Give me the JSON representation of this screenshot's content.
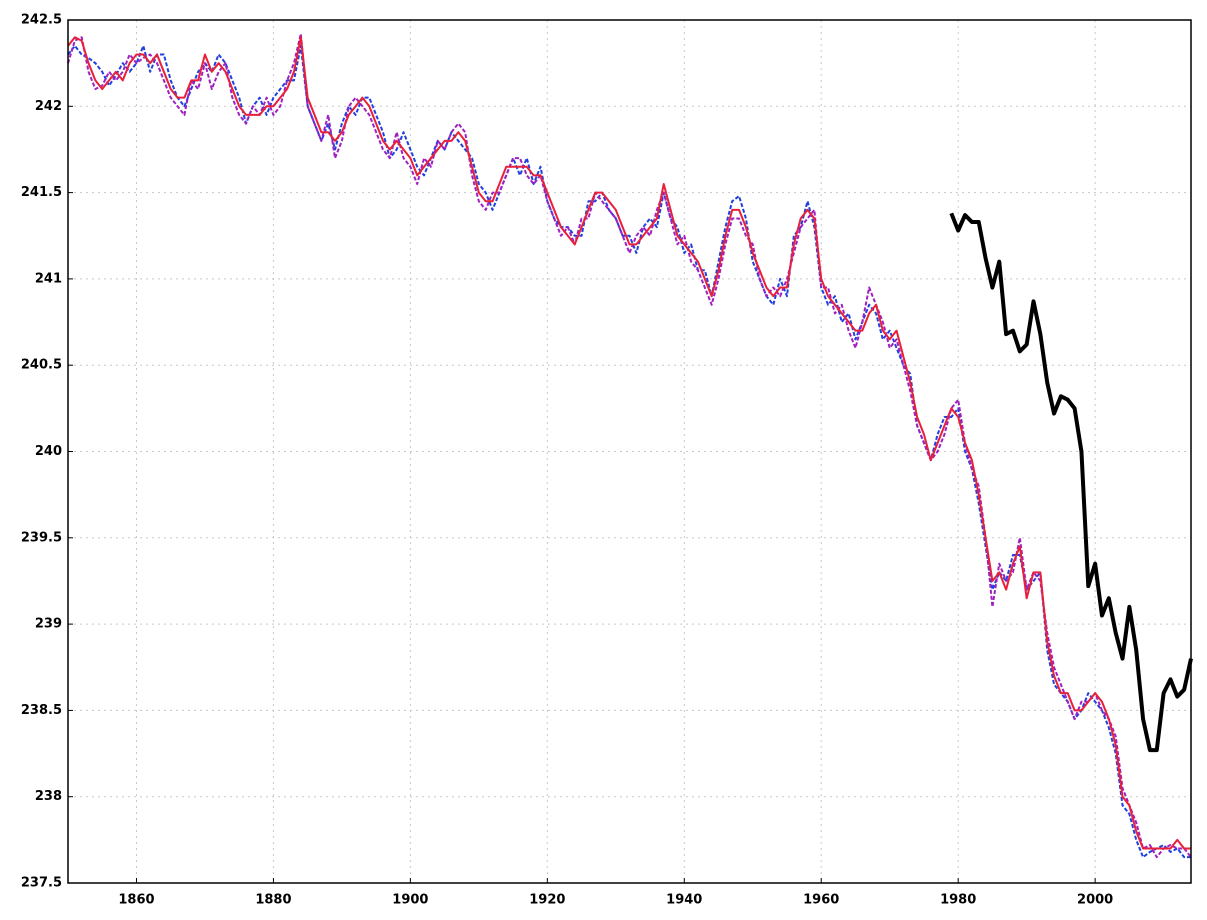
{
  "chart_data": {
    "type": "line",
    "xlim": [
      1850,
      2014
    ],
    "xticks": [
      1860,
      1880,
      1900,
      1920,
      1940,
      1960,
      1980,
      2000
    ],
    "ylim": [
      237.5,
      242.5
    ],
    "yticks": [
      237.5,
      238,
      238.5,
      239,
      239.5,
      240,
      240.5,
      241,
      241.5,
      242,
      242.5
    ],
    "grid": true,
    "x": [
      1850,
      1851,
      1852,
      1853,
      1854,
      1855,
      1856,
      1857,
      1858,
      1859,
      1860,
      1861,
      1862,
      1863,
      1864,
      1865,
      1866,
      1867,
      1868,
      1869,
      1870,
      1871,
      1872,
      1873,
      1874,
      1875,
      1876,
      1877,
      1878,
      1879,
      1880,
      1881,
      1882,
      1883,
      1884,
      1885,
      1886,
      1887,
      1888,
      1889,
      1890,
      1891,
      1892,
      1893,
      1894,
      1895,
      1896,
      1897,
      1898,
      1899,
      1900,
      1901,
      1902,
      1903,
      1904,
      1905,
      1906,
      1907,
      1908,
      1909,
      1910,
      1911,
      1912,
      1913,
      1914,
      1915,
      1916,
      1917,
      1918,
      1919,
      1920,
      1921,
      1922,
      1923,
      1924,
      1925,
      1926,
      1927,
      1928,
      1929,
      1930,
      1931,
      1932,
      1933,
      1934,
      1935,
      1936,
      1937,
      1938,
      1939,
      1940,
      1941,
      1942,
      1943,
      1944,
      1945,
      1946,
      1947,
      1948,
      1949,
      1950,
      1951,
      1952,
      1953,
      1954,
      1955,
      1956,
      1957,
      1958,
      1959,
      1960,
      1961,
      1962,
      1963,
      1964,
      1965,
      1966,
      1967,
      1968,
      1969,
      1970,
      1971,
      1972,
      1973,
      1974,
      1975,
      1976,
      1977,
      1978,
      1979,
      1980,
      1981,
      1982,
      1983,
      1984,
      1985,
      1986,
      1987,
      1988,
      1989,
      1990,
      1991,
      1992,
      1993,
      1994,
      1995,
      1996,
      1997,
      1998,
      1999,
      2000,
      2001,
      2002,
      2003,
      2004,
      2005,
      2006,
      2007,
      2008,
      2009,
      2010,
      2011,
      2012,
      2013,
      2014
    ],
    "series": [
      {
        "color": "#2040e0",
        "dash": true,
        "values": [
          242.3,
          242.35,
          242.3,
          242.28,
          242.25,
          242.2,
          242.12,
          242.18,
          242.25,
          242.2,
          242.25,
          242.35,
          242.2,
          242.3,
          242.3,
          242.15,
          242.05,
          242.0,
          242.1,
          242.2,
          242.25,
          242.2,
          242.3,
          242.25,
          242.15,
          242.05,
          241.9,
          242.0,
          242.05,
          241.95,
          242.05,
          242.1,
          242.15,
          242.15,
          242.35,
          242.0,
          241.9,
          241.8,
          241.9,
          241.75,
          241.9,
          242.0,
          241.95,
          242.05,
          242.05,
          241.95,
          241.85,
          241.7,
          241.75,
          241.85,
          241.75,
          241.65,
          241.6,
          241.7,
          241.8,
          241.75,
          241.85,
          241.8,
          241.75,
          241.7,
          241.55,
          241.5,
          241.4,
          241.5,
          241.6,
          241.7,
          241.6,
          241.7,
          241.55,
          241.65,
          241.45,
          241.35,
          241.3,
          241.3,
          241.25,
          241.25,
          241.45,
          241.45,
          241.5,
          241.4,
          241.35,
          241.25,
          241.25,
          241.15,
          241.3,
          241.35,
          241.3,
          241.5,
          241.35,
          241.3,
          241.15,
          241.2,
          241.05,
          241.05,
          240.9,
          241.1,
          241.3,
          241.45,
          241.48,
          241.35,
          241.1,
          241.0,
          240.9,
          240.85,
          241.0,
          240.9,
          241.25,
          241.3,
          241.45,
          241.3,
          240.95,
          240.85,
          240.9,
          240.75,
          240.8,
          240.65,
          240.75,
          240.85,
          240.8,
          240.65,
          240.7,
          240.6,
          240.5,
          240.45,
          240.15,
          240.05,
          239.95,
          240.1,
          240.2,
          240.2,
          240.25,
          240.0,
          239.9,
          239.7,
          239.45,
          239.2,
          239.3,
          239.25,
          239.4,
          239.4,
          239.2,
          239.25,
          239.3,
          238.85,
          238.65,
          238.6,
          238.55,
          238.45,
          238.5,
          238.6,
          238.55,
          238.5,
          238.4,
          238.25,
          237.95,
          237.9,
          237.75,
          237.65,
          237.68,
          237.7,
          237.72,
          237.68,
          237.7,
          237.65,
          237.65
        ]
      },
      {
        "color": "#a020c0",
        "dash": true,
        "values": [
          242.25,
          242.38,
          242.4,
          242.2,
          242.1,
          242.12,
          242.2,
          242.15,
          242.2,
          242.3,
          242.25,
          242.28,
          242.3,
          242.25,
          242.15,
          242.05,
          242.0,
          241.95,
          242.15,
          242.1,
          242.25,
          242.1,
          242.2,
          242.25,
          242.05,
          241.95,
          241.9,
          242.0,
          241.95,
          242.05,
          241.95,
          242.0,
          242.15,
          242.25,
          242.42,
          242.0,
          241.9,
          241.8,
          241.95,
          241.7,
          241.8,
          242.0,
          242.05,
          242.0,
          241.95,
          241.85,
          241.75,
          241.7,
          241.85,
          241.7,
          241.65,
          241.55,
          241.7,
          241.65,
          241.8,
          241.75,
          241.85,
          241.9,
          241.85,
          241.6,
          241.45,
          241.4,
          241.5,
          241.5,
          241.6,
          241.7,
          241.7,
          241.6,
          241.55,
          241.6,
          241.45,
          241.35,
          241.25,
          241.3,
          241.2,
          241.35,
          241.35,
          241.5,
          241.45,
          241.4,
          241.35,
          241.25,
          241.15,
          241.25,
          241.3,
          241.25,
          241.4,
          241.5,
          241.35,
          241.2,
          241.25,
          241.1,
          241.05,
          240.95,
          240.85,
          241.0,
          241.2,
          241.35,
          241.35,
          241.25,
          241.2,
          241.0,
          240.9,
          240.95,
          240.9,
          241.0,
          241.15,
          241.3,
          241.35,
          241.4,
          240.95,
          240.95,
          240.8,
          240.85,
          240.7,
          240.6,
          240.75,
          240.95,
          240.85,
          240.75,
          240.6,
          240.65,
          240.5,
          240.35,
          240.15,
          240.05,
          239.95,
          240.0,
          240.1,
          240.25,
          240.3,
          240.05,
          239.9,
          239.8,
          239.5,
          239.1,
          239.35,
          239.25,
          239.3,
          239.5,
          239.2,
          239.3,
          239.25,
          238.95,
          238.75,
          238.65,
          238.55,
          238.45,
          238.55,
          238.55,
          238.6,
          238.5,
          238.45,
          238.35,
          238.05,
          237.95,
          237.85,
          237.7,
          237.72,
          237.65,
          237.7,
          237.72,
          237.7,
          237.7,
          237.65
        ]
      },
      {
        "color": "#e8203a",
        "dash": false,
        "values": [
          242.35,
          242.4,
          242.38,
          242.25,
          242.15,
          242.1,
          242.15,
          242.2,
          242.15,
          242.25,
          242.3,
          242.3,
          242.25,
          242.3,
          242.2,
          242.1,
          242.05,
          242.05,
          242.15,
          242.15,
          242.3,
          242.2,
          242.25,
          242.2,
          242.1,
          242.0,
          241.95,
          241.95,
          241.95,
          242.0,
          242.0,
          242.05,
          242.1,
          242.2,
          242.4,
          242.05,
          241.95,
          241.85,
          241.85,
          241.8,
          241.85,
          241.95,
          242.0,
          242.05,
          242.0,
          241.9,
          241.8,
          241.75,
          241.8,
          241.75,
          241.7,
          241.6,
          241.65,
          241.7,
          241.75,
          241.8,
          241.8,
          241.85,
          241.8,
          241.65,
          241.5,
          241.45,
          241.45,
          241.55,
          241.65,
          241.65,
          241.65,
          241.65,
          241.6,
          241.6,
          241.5,
          241.4,
          241.3,
          241.25,
          241.2,
          241.3,
          241.4,
          241.5,
          241.5,
          241.45,
          241.4,
          241.3,
          241.2,
          241.2,
          241.25,
          241.3,
          241.35,
          241.55,
          241.4,
          241.25,
          241.2,
          241.15,
          241.1,
          241.0,
          240.9,
          241.05,
          241.25,
          241.4,
          241.4,
          241.3,
          241.15,
          241.05,
          240.95,
          240.9,
          240.95,
          240.95,
          241.2,
          241.35,
          241.4,
          241.35,
          241.0,
          240.9,
          240.85,
          240.8,
          240.75,
          240.7,
          240.7,
          240.8,
          240.85,
          240.7,
          240.65,
          240.7,
          240.55,
          240.4,
          240.2,
          240.1,
          239.95,
          240.05,
          240.15,
          240.25,
          240.2,
          240.05,
          239.95,
          239.75,
          239.5,
          239.25,
          239.3,
          239.2,
          239.35,
          239.45,
          239.15,
          239.3,
          239.3,
          238.9,
          238.7,
          238.6,
          238.6,
          238.5,
          238.5,
          238.55,
          238.6,
          238.55,
          238.45,
          238.3,
          238.0,
          237.95,
          237.8,
          237.7,
          237.7,
          237.7,
          237.7,
          237.7,
          237.75,
          237.7,
          237.7
        ]
      },
      {
        "color": "#000000",
        "dash": false,
        "width": 4,
        "x": [
          1979,
          1980,
          1981,
          1982,
          1983,
          1984,
          1985,
          1986,
          1987,
          1988,
          1989,
          1990,
          1991,
          1992,
          1993,
          1994,
          1995,
          1996,
          1997,
          1998,
          1999,
          2000,
          2001,
          2002,
          2003,
          2004,
          2005,
          2006,
          2007,
          2008,
          2009,
          2010,
          2011,
          2012,
          2013,
          2014
        ],
        "values": [
          241.38,
          241.28,
          241.37,
          241.33,
          241.33,
          241.12,
          240.95,
          241.1,
          240.68,
          240.7,
          240.58,
          240.62,
          240.87,
          240.68,
          240.4,
          240.22,
          240.32,
          240.3,
          240.25,
          240.0,
          239.22,
          239.35,
          239.05,
          239.15,
          238.95,
          238.8,
          239.1,
          238.85,
          238.45,
          238.27,
          238.27,
          238.6,
          238.68,
          238.58,
          238.62,
          238.8
        ]
      }
    ]
  }
}
